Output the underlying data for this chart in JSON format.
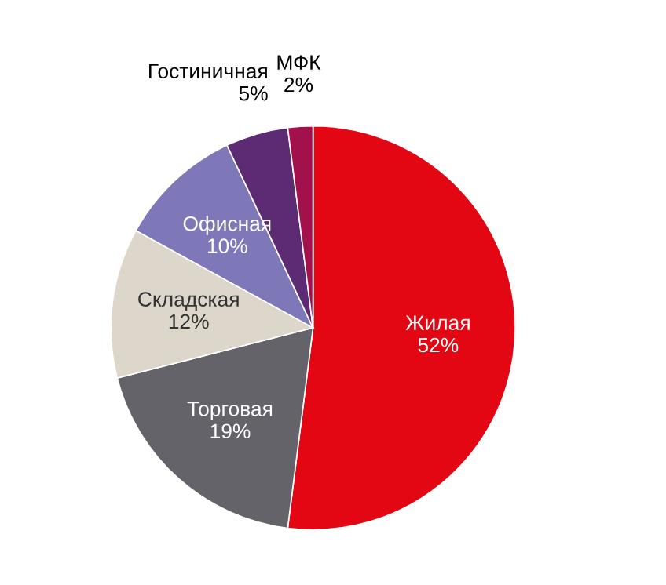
{
  "chart_data": {
    "type": "pie",
    "categories": [
      "Жилая",
      "Торговая",
      "Складская",
      "Офисная",
      "Гостиничная",
      "МФК"
    ],
    "values": [
      52,
      19,
      12,
      10,
      5,
      2
    ],
    "value_labels": [
      "52%",
      "19%",
      "12%",
      "10%",
      "5%",
      "2%"
    ],
    "colors": [
      "#e30613",
      "#636369",
      "#dcd6cb",
      "#7f78b8",
      "#5c2b74",
      "#a3114c"
    ],
    "legend": false
  }
}
